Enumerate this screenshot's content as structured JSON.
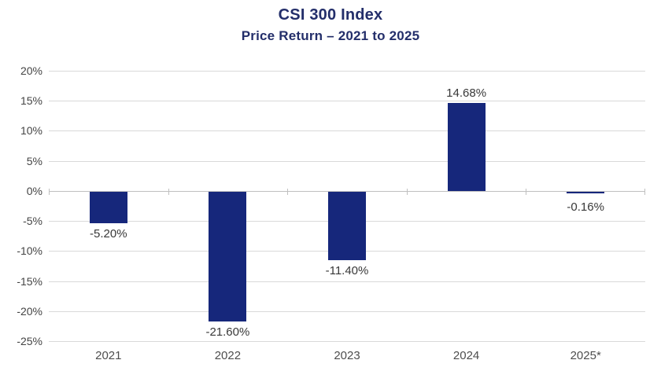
{
  "chart_data": {
    "type": "bar",
    "title": "CSI 300 Index",
    "subtitle": "Price Return – 2021 to 2025",
    "categories": [
      "2021",
      "2022",
      "2023",
      "2024",
      "2025*"
    ],
    "values": [
      -5.2,
      -21.6,
      -11.4,
      14.68,
      -0.16
    ],
    "value_labels": [
      "-5.20%",
      "-21.60%",
      "-11.40%",
      "14.68%",
      "-0.16%"
    ],
    "xlabel": "",
    "ylabel": "",
    "ylim": [
      -25,
      20
    ],
    "ytick_step": 5,
    "ytick_labels": [
      "20%",
      "15%",
      "10%",
      "5%",
      "0%",
      "-5%",
      "-10%",
      "-15%",
      "-20%",
      "-25%"
    ],
    "grid": true,
    "legend": "none",
    "colors": {
      "bar": "#16277B",
      "title": "#232E6A",
      "gridline": "#d9d9d9",
      "zero_axis": "#c0c0c0",
      "tick_label": "#444444",
      "value_label": "#383838",
      "category_label": "#4d4d4d",
      "background": "#ffffff"
    }
  }
}
